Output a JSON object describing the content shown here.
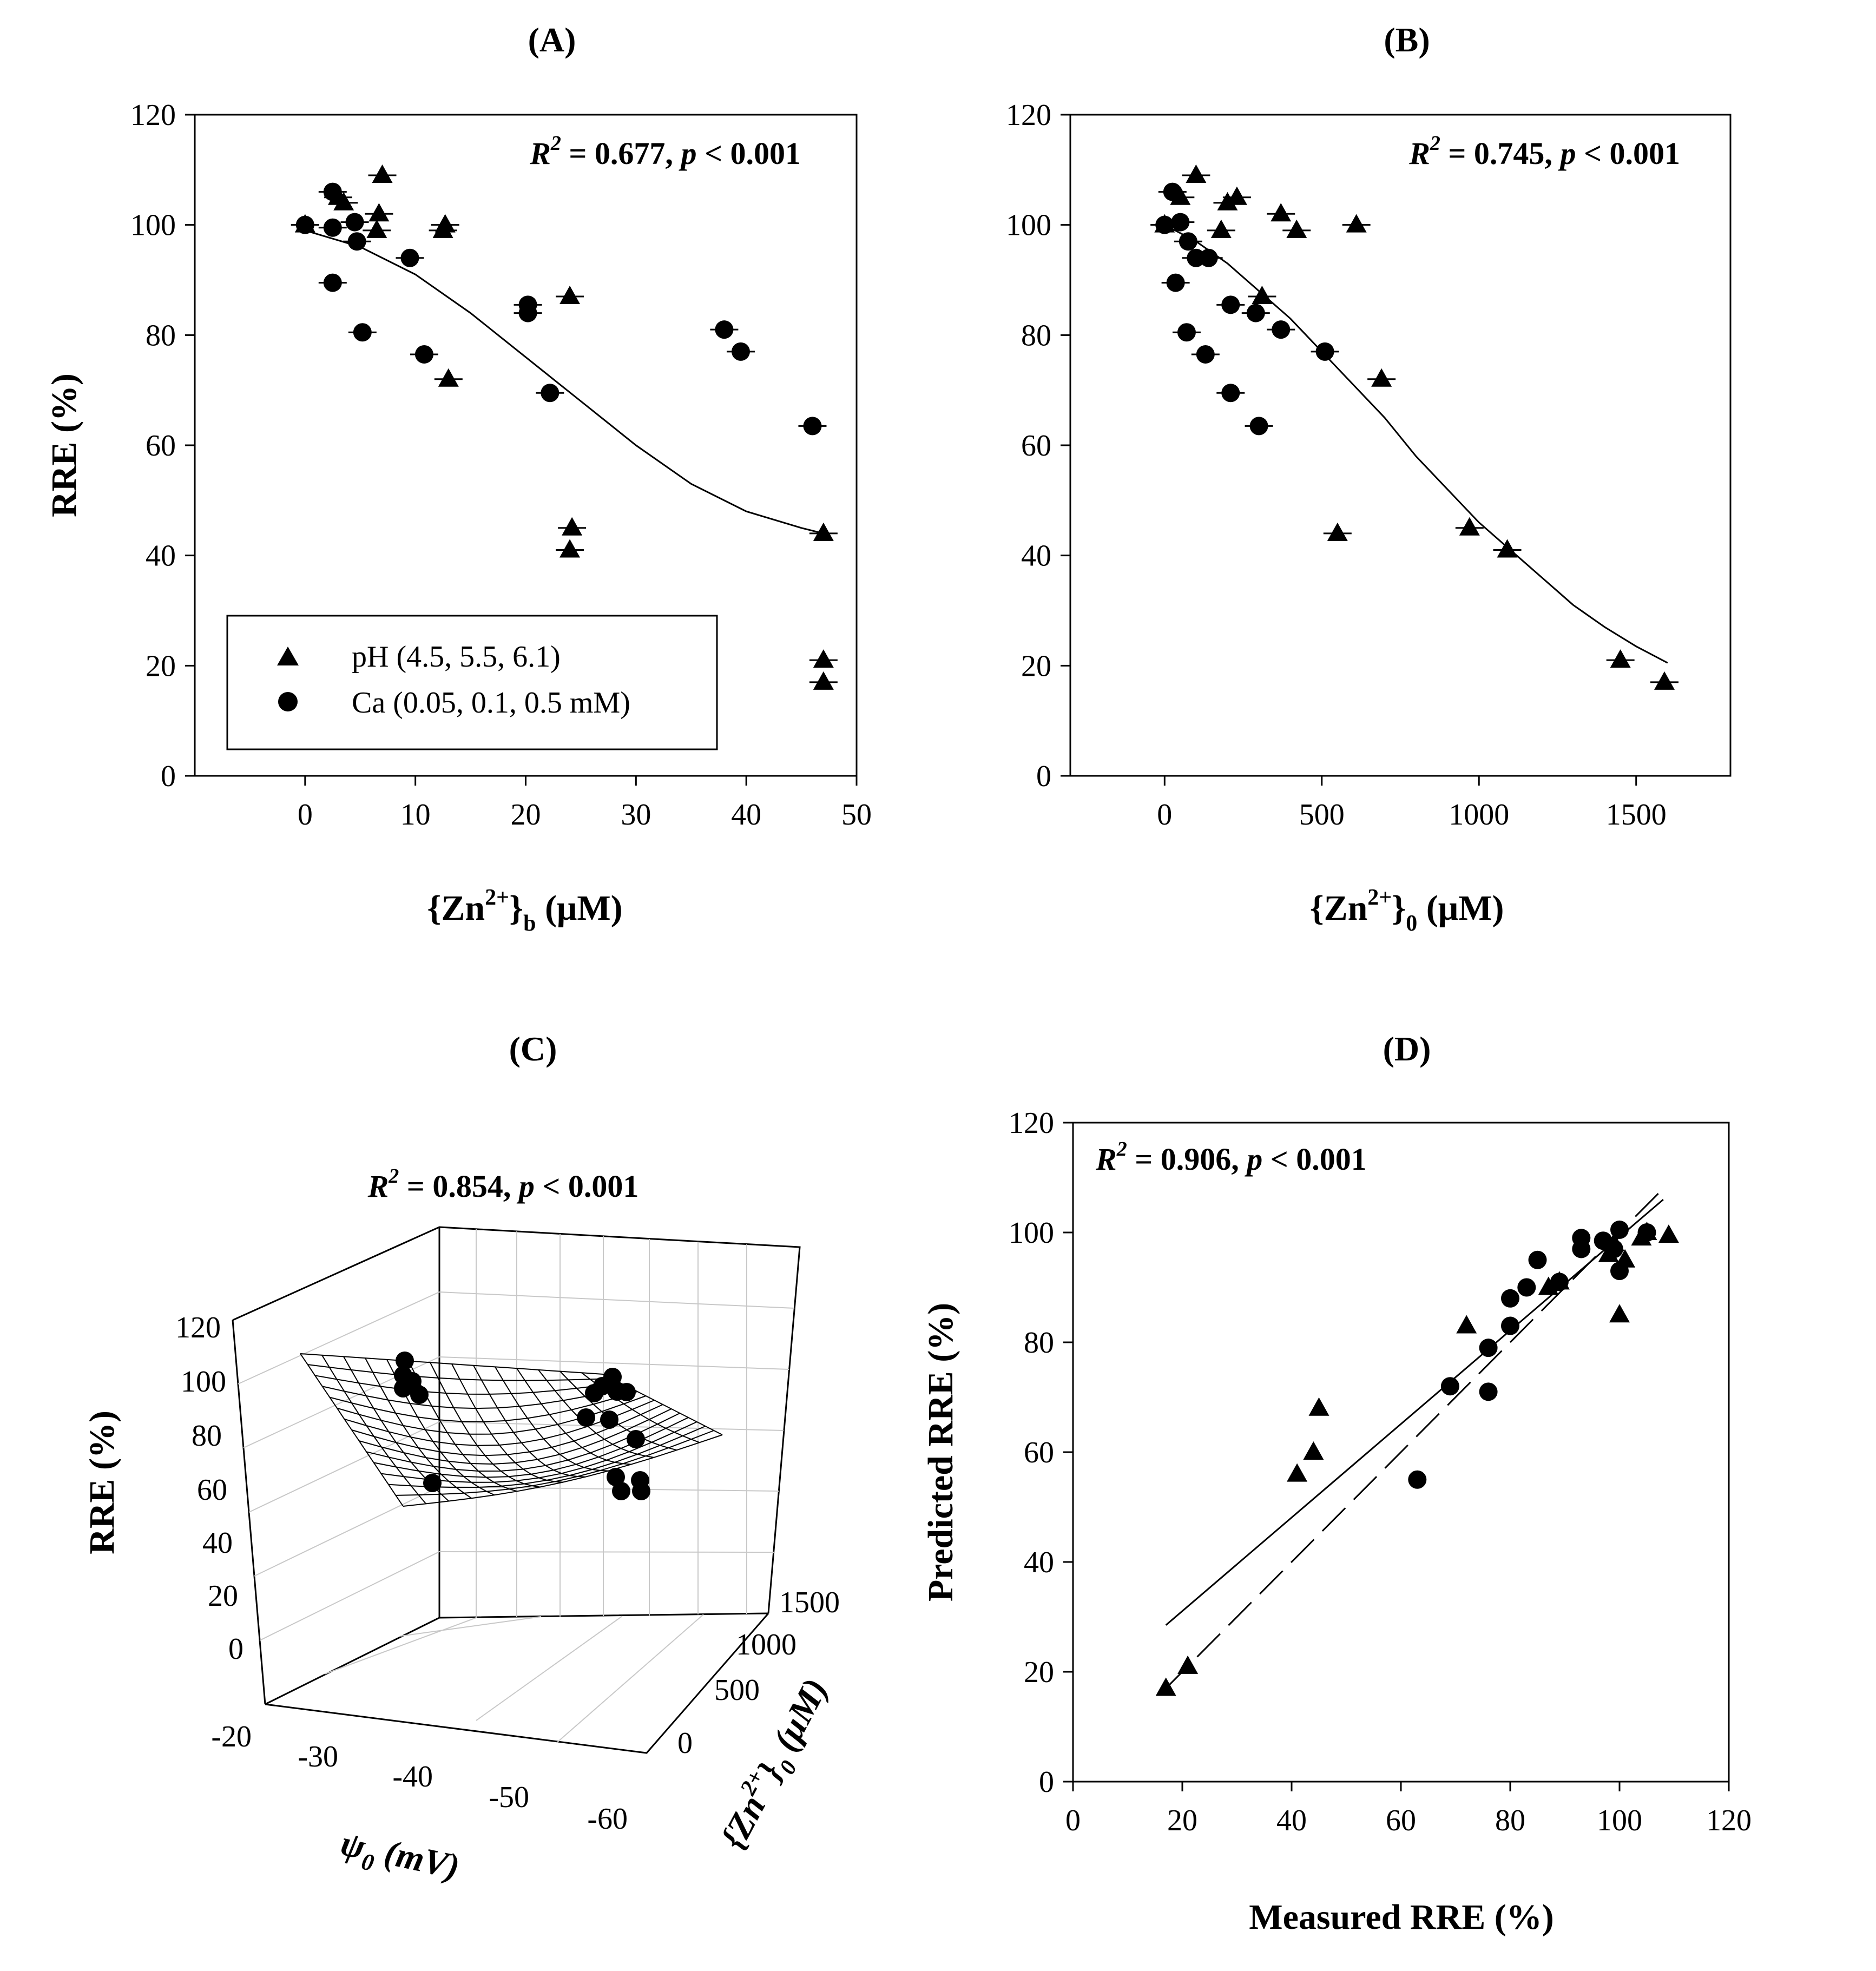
{
  "chart_data": [
    {
      "panel": "(A)",
      "type": "scatter",
      "title": "(A)",
      "stat_label": "R² = 0.677, p < 0.001",
      "xlabel": "{Zn2+}b (μM)",
      "ylabel": "RRE (%)",
      "xlim": [
        -10,
        50
      ],
      "ylim": [
        0,
        120
      ],
      "xticks": [
        0,
        10,
        20,
        30,
        40,
        50
      ],
      "yticks": [
        0,
        20,
        40,
        60,
        80,
        100,
        120
      ],
      "legend": {
        "position": "bottom-left",
        "entries": [
          "pH (4.5, 5.5, 6.1)",
          "Ca (0.05, 0.1, 0.5 mM)"
        ]
      },
      "series": [
        {
          "name": "pH (4.5, 5.5, 6.1)",
          "marker": "triangle",
          "x": [
            0,
            3,
            3.5,
            7,
            6.7,
            6.5,
            12.7,
            12.5,
            13,
            24,
            24.2,
            24,
            47,
            47,
            47
          ],
          "y": [
            100,
            105,
            104,
            109,
            102,
            99,
            100,
            99,
            72,
            87,
            45,
            41,
            44,
            21,
            17
          ]
        },
        {
          "name": "Ca (0.05, 0.1, 0.5 mM)",
          "marker": "circle",
          "x": [
            0,
            2.5,
            2.5,
            2.5,
            4.5,
            4.7,
            5.2,
            9.5,
            10.8,
            20.2,
            20.2,
            22.2,
            38,
            39.5,
            46
          ],
          "y": [
            100,
            106,
            99.5,
            89.5,
            100.5,
            97,
            80.5,
            94,
            76.5,
            85.5,
            84,
            69.5,
            81,
            77,
            63.5
          ]
        },
        {
          "name": "fit",
          "marker": "line",
          "x": [
            0,
            5,
            10,
            15,
            20,
            25,
            30,
            35,
            40,
            45,
            47
          ],
          "y": [
            99,
            96,
            91,
            84,
            76,
            68,
            60,
            53,
            48,
            45,
            44
          ]
        }
      ]
    },
    {
      "panel": "(B)",
      "type": "scatter",
      "title": "(B)",
      "stat_label": "R² = 0.745, p < 0.001",
      "xlabel": "{Zn2+}0 (μM)",
      "ylabel": "",
      "xlim": [
        -300,
        1800
      ],
      "ylim": [
        0,
        120
      ],
      "xticks": [
        0,
        500,
        1000,
        1500
      ],
      "yticks": [
        0,
        20,
        40,
        60,
        80,
        100,
        120
      ],
      "series": [
        {
          "name": "pH",
          "marker": "triangle",
          "x": [
            0,
            50,
            100,
            180,
            200,
            230,
            310,
            370,
            420,
            610,
            550,
            690,
            970,
            1090,
            1450,
            1590
          ],
          "y": [
            100,
            105,
            109,
            99,
            104,
            105,
            87,
            102,
            99,
            100,
            44,
            72,
            45,
            41,
            21,
            17
          ]
        },
        {
          "name": "Ca",
          "marker": "circle",
          "x": [
            0,
            25,
            35,
            50,
            70,
            75,
            100,
            130,
            140,
            210,
            210,
            290,
            300,
            370,
            510
          ],
          "y": [
            100,
            106,
            89.5,
            100.5,
            80.5,
            97,
            94,
            76.5,
            94,
            69.5,
            85.5,
            84,
            63.5,
            81,
            77
          ]
        },
        {
          "name": "fit",
          "marker": "line",
          "x": [
            0,
            100,
            200,
            300,
            400,
            500,
            600,
            700,
            800,
            900,
            1000,
            1100,
            1200,
            1300,
            1400,
            1500,
            1600
          ],
          "y": [
            100,
            97,
            93,
            88,
            83,
            77,
            71,
            65,
            58,
            52,
            46,
            41,
            36,
            31,
            27,
            23.5,
            20.5
          ]
        }
      ]
    },
    {
      "panel": "(C)",
      "type": "surface",
      "title": "(C)",
      "stat_label": "R² = 0.854, p < 0.001",
      "xlabel": "ψ0 (mV)",
      "ylabel": "{Zn2+}0 (μM)",
      "zlabel": "RRE (%)",
      "xticks": [
        -20,
        -30,
        -40,
        -50,
        -60
      ],
      "yticks": [
        0,
        500,
        1000,
        1500
      ],
      "zticks": [
        0,
        20,
        40,
        60,
        80,
        100,
        120
      ]
    },
    {
      "panel": "(D)",
      "type": "scatter",
      "title": "(D)",
      "stat_label": "R² = 0.906, p < 0.001",
      "xlabel": "Measured RRE (%)",
      "ylabel": "Predicted RRE (%)",
      "xlim": [
        0,
        120
      ],
      "ylim": [
        0,
        120
      ],
      "xticks": [
        0,
        20,
        40,
        60,
        80,
        100,
        120
      ],
      "yticks": [
        0,
        20,
        40,
        60,
        80,
        100,
        120
      ],
      "series": [
        {
          "name": "pH",
          "marker": "triangle",
          "x": [
            17,
            21,
            41,
            44,
            45,
            72,
            87,
            89,
            98,
            99,
            100,
            101,
            104,
            105,
            109
          ],
          "y": [
            17,
            21,
            56,
            60,
            68,
            83,
            90,
            91,
            96,
            98,
            85,
            95,
            99,
            100,
            99.5
          ]
        },
        {
          "name": "Ca",
          "marker": "circle",
          "x": [
            63,
            69,
            76,
            76,
            80,
            80,
            83,
            85,
            89,
            93,
            93,
            97,
            99,
            100,
            100,
            105
          ],
          "y": [
            55,
            72,
            79,
            71,
            88,
            83,
            90,
            95,
            91,
            99,
            97,
            98.5,
            97,
            100.5,
            93,
            100
          ]
        },
        {
          "name": "regression",
          "marker": "solid-line",
          "x": [
            17,
            108
          ],
          "y": [
            28.5,
            106
          ]
        },
        {
          "name": "1:1",
          "marker": "dashed-line",
          "x": [
            17,
            108
          ],
          "y": [
            17,
            108
          ]
        }
      ]
    }
  ]
}
